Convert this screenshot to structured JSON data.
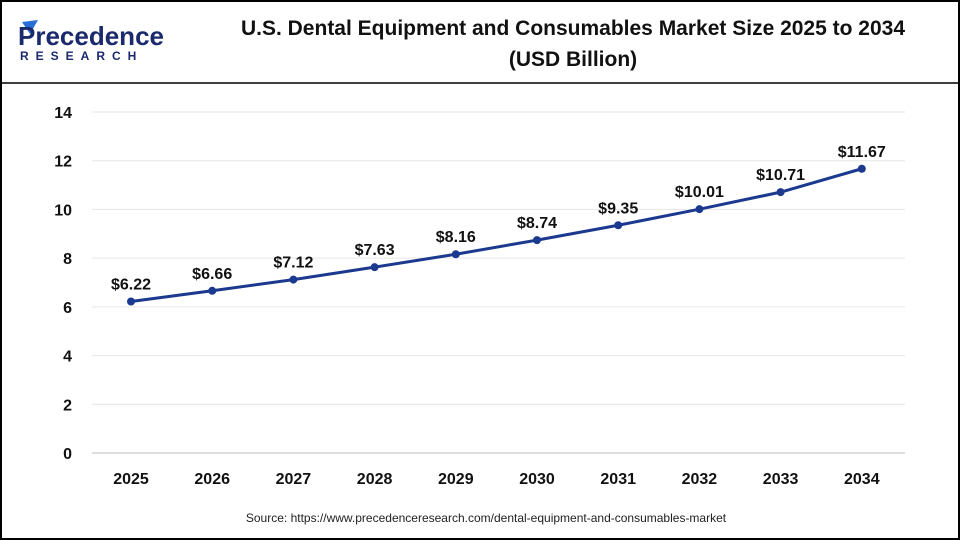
{
  "logo": {
    "line1": "Precedence",
    "line2": "RESEARCH"
  },
  "chart_data": {
    "type": "line",
    "title": "U.S. Dental Equipment and Consumables Market Size 2025 to 2034",
    "title_line2": "(USD Billion)",
    "categories": [
      "2025",
      "2026",
      "2027",
      "2028",
      "2029",
      "2030",
      "2031",
      "2032",
      "2033",
      "2034"
    ],
    "values": [
      6.22,
      6.66,
      7.12,
      7.63,
      8.16,
      8.74,
      9.35,
      10.01,
      10.71,
      11.67
    ],
    "data_labels": [
      "$6.22",
      "$6.66",
      "$7.12",
      "$7.63",
      "$8.16",
      "$8.74",
      "$9.35",
      "$10.01",
      "$10.71",
      "$11.67"
    ],
    "ylim": [
      0,
      14
    ],
    "yticks": [
      "0",
      "2",
      "4",
      "6",
      "8",
      "10",
      "12",
      "14"
    ],
    "grid": true,
    "xlabel": "",
    "ylabel": "",
    "line_color": "#1b3a8f"
  },
  "source": "Source: https://www.precedenceresearch.com/dental-equipment-and-consumables-market"
}
